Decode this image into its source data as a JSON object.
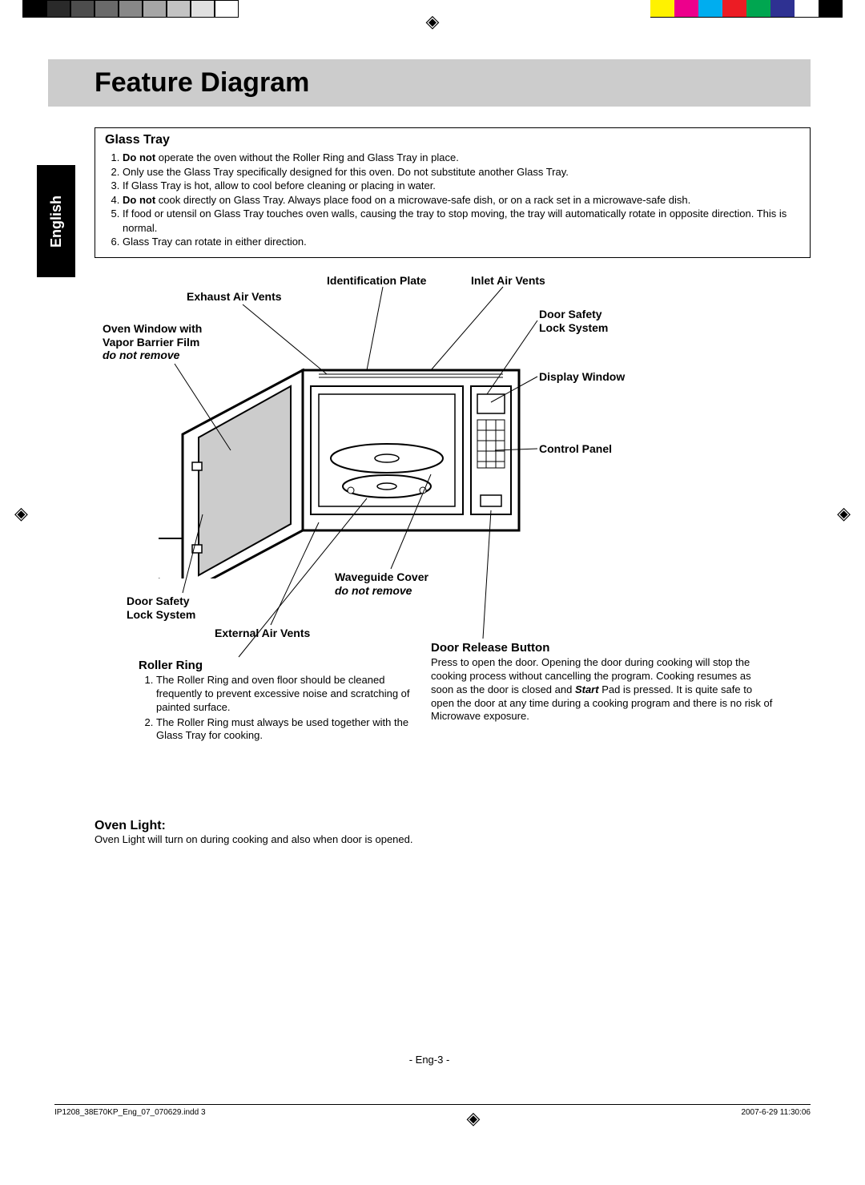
{
  "registration_mark": "◈",
  "color_bar_left": [
    "#000000",
    "#2a2a2a",
    "#4d4d4d",
    "#6a6a6a",
    "#888888",
    "#a6a6a6",
    "#c3c3c3",
    "#e0e0e0",
    "#ffffff"
  ],
  "color_bar_right": [
    "#fff200",
    "#ed008c",
    "#00adef",
    "#ec1c24",
    "#00a650",
    "#2e3192",
    "#ffffff",
    "#000000"
  ],
  "title": "Feature Diagram",
  "language_tab": "English",
  "glass_tray": {
    "heading": "Glass Tray",
    "items": [
      {
        "pre": "Do not",
        "rest": " operate the oven without the Roller Ring and Glass Tray in place."
      },
      {
        "pre": "",
        "rest": "Only use the Glass Tray specifically designed for this oven. Do not substitute another Glass Tray."
      },
      {
        "pre": "",
        "rest": "If Glass Tray is hot, allow to cool before cleaning or placing in water."
      },
      {
        "pre": "Do not",
        "rest": " cook directly on Glass Tray. Always place food on a microwave-safe dish, or on a rack set in a microwave-safe dish."
      },
      {
        "pre": "",
        "rest": "If food or utensil on Glass Tray touches oven walls, causing the tray to stop moving, the tray will automatically rotate in opposite direction. This is normal."
      },
      {
        "pre": "",
        "rest": "Glass Tray can rotate in either direction."
      }
    ]
  },
  "labels": {
    "identification_plate": "Identification Plate",
    "inlet_air_vents": "Inlet Air Vents",
    "exhaust_air_vents": "Exhaust Air Vents",
    "oven_window_line1": "Oven Window with",
    "oven_window_line2": "Vapor Barrier Film",
    "oven_window_em": "do not remove",
    "door_safety_line1": "Door Safety",
    "door_safety_line2": "Lock System",
    "display_window": "Display Window",
    "control_panel": "Control Panel",
    "waveguide_cover": "Waveguide Cover",
    "waveguide_em": "do not remove",
    "external_air_vents": "External Air Vents",
    "door_safety2_line1": "Door Safety",
    "door_safety2_line2": "Lock System"
  },
  "roller_ring": {
    "heading": "Roller Ring",
    "items": [
      "The Roller Ring and oven floor should be cleaned frequently to prevent excessive noise and scratching of painted surface.",
      "The Roller Ring must always be used together with the Glass Tray for cooking."
    ]
  },
  "door_release": {
    "heading": "Door Release Button",
    "body_1": "Press to open the door. Opening the door during cooking will stop the cooking process without cancelling the program. Cooking resumes as soon as the door is closed and ",
    "body_bold": "Start",
    "body_2": " Pad is pressed. It is quite safe to open the door at any time during a cooking program and there is no risk of Microwave exposure."
  },
  "oven_light": {
    "heading": "Oven Light:",
    "body": "Oven Light will turn on during cooking and also when door is opened."
  },
  "page_number": "- Eng-3 -",
  "footer_left": "IP1208_38E70KP_Eng_07_070629.indd   3",
  "footer_right": "2007-6-29   11:30:06"
}
